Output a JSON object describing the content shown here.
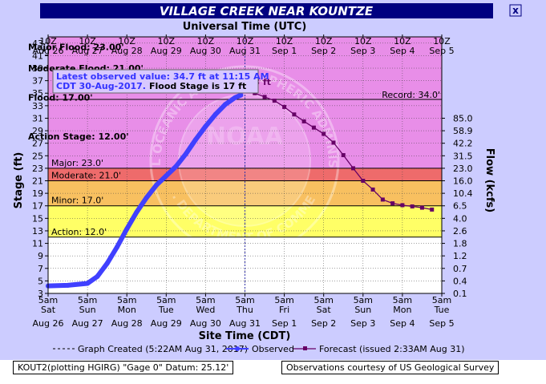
{
  "header": {
    "title": "VILLAGE CREEK NEAR KOUNTZE",
    "top_axis_title": "Universal Time (UTC)",
    "close_button": "x"
  },
  "chart_data": {
    "type": "line",
    "ylabel": "Stage (ft)",
    "y2label": "Flow (kcfs)",
    "xlabel": "Site Time (CDT)",
    "ylim": [
      3,
      44
    ],
    "xlim_hours": [
      0,
      240
    ],
    "yticks": [
      3,
      5,
      7,
      9,
      11,
      13,
      15,
      17,
      19,
      21,
      23,
      25,
      27,
      29,
      31,
      33,
      35,
      37,
      39,
      41,
      43
    ],
    "x_bottom_ticks": [
      {
        "t": "5am",
        "d": "Sat",
        "date": "Aug 26"
      },
      {
        "t": "5am",
        "d": "Sun",
        "date": "Aug 27"
      },
      {
        "t": "5am",
        "d": "Mon",
        "date": "Aug 28"
      },
      {
        "t": "5am",
        "d": "Tue",
        "date": "Aug 29"
      },
      {
        "t": "5am",
        "d": "Wed",
        "date": "Aug 30"
      },
      {
        "t": "5am",
        "d": "Thu",
        "date": "Aug 31"
      },
      {
        "t": "5am",
        "d": "Fri",
        "date": "Sep 1"
      },
      {
        "t": "5am",
        "d": "Sat",
        "date": "Sep 2"
      },
      {
        "t": "5am",
        "d": "Sun",
        "date": "Sep 3"
      },
      {
        "t": "5am",
        "d": "Mon",
        "date": "Sep 4"
      },
      {
        "t": "5am",
        "d": "Tue",
        "date": "Sep 5"
      }
    ],
    "x_top_ticks": [
      {
        "t": "10Z",
        "date": "Aug 26"
      },
      {
        "t": "10Z",
        "date": "Aug 27"
      },
      {
        "t": "10Z",
        "date": "Aug 28"
      },
      {
        "t": "10Z",
        "date": "Aug 29"
      },
      {
        "t": "10Z",
        "date": "Aug 30"
      },
      {
        "t": "10Z",
        "date": "Aug 31"
      },
      {
        "t": "10Z",
        "date": "Sep 1"
      },
      {
        "t": "10Z",
        "date": "Sep 2"
      },
      {
        "t": "10Z",
        "date": "Sep 3"
      },
      {
        "t": "10Z",
        "date": "Sep 4"
      },
      {
        "t": "10Z",
        "date": "Sep 5"
      }
    ],
    "flow_ticks": [
      {
        "stage": 3,
        "label": "0.1"
      },
      {
        "stage": 5,
        "label": "0.4"
      },
      {
        "stage": 7,
        "label": "0.7"
      },
      {
        "stage": 9,
        "label": "1.2"
      },
      {
        "stage": 11,
        "label": "1.8"
      },
      {
        "stage": 13,
        "label": "2.6"
      },
      {
        "stage": 15,
        "label": "4.0"
      },
      {
        "stage": 17,
        "label": "6.5"
      },
      {
        "stage": 19,
        "label": "10.4"
      },
      {
        "stage": 21,
        "label": "16.0"
      },
      {
        "stage": 23,
        "label": "23.0"
      },
      {
        "stage": 25,
        "label": "31.5"
      },
      {
        "stage": 27,
        "label": "42.2"
      },
      {
        "stage": 29,
        "label": "58.9"
      },
      {
        "stage": 31,
        "label": "85.0"
      }
    ],
    "flood_categories": [
      {
        "name": "Major",
        "label": "Major: 23.0'",
        "min": 23,
        "max": 44,
        "color": "#e88ee8"
      },
      {
        "name": "Moderate",
        "label": "Moderate: 21.0'",
        "min": 21,
        "max": 23,
        "color": "#ee6b6b"
      },
      {
        "name": "Minor",
        "label": "Minor: 17.0'",
        "min": 17,
        "max": 21,
        "color": "#f8c060"
      },
      {
        "name": "Action",
        "label": "Action: 12.0'",
        "min": 12,
        "max": 17,
        "color": "#ffff66"
      }
    ],
    "left_labels": [
      {
        "text": "Major Flood: 23.00'",
        "stage": 42.4
      },
      {
        "text": "Moderate Flood: 21.00'",
        "stage": 39.0
      },
      {
        "text": "Flood: 17.00'",
        "stage": 34.3
      },
      {
        "text": "Action Stage: 12.00'",
        "stage": 28.1
      }
    ],
    "record": {
      "label": "Record: 34.0'",
      "value": 34.0
    },
    "observed": {
      "name": "Observed",
      "color": "#4040ff",
      "x": [
        0,
        12,
        24,
        30,
        36,
        42,
        48,
        54,
        60,
        66,
        72,
        78,
        84,
        90,
        96,
        102,
        108,
        114,
        117.5
      ],
      "y": [
        4.2,
        4.3,
        4.6,
        5.7,
        7.8,
        10.4,
        13.3,
        16.0,
        18.3,
        20.3,
        21.8,
        23.3,
        25.3,
        27.6,
        29.7,
        31.6,
        33.2,
        34.3,
        34.7
      ]
    },
    "forecast": {
      "name": "Forecast",
      "color": "#660066",
      "x": [
        120,
        126,
        132,
        138,
        144,
        150,
        156,
        162,
        168,
        174,
        180,
        186,
        192,
        198,
        204,
        210,
        216,
        222,
        228,
        234
      ],
      "y": [
        35.3,
        35.0,
        34.4,
        33.8,
        32.8,
        31.6,
        30.5,
        29.5,
        28.5,
        27.1,
        25.1,
        23.0,
        21.0,
        19.6,
        18.0,
        17.4,
        17.1,
        16.9,
        16.7,
        16.4
      ]
    },
    "now_hour": 120,
    "annotations": {
      "observed_peak": "34.7 ft",
      "forecast_peak": "35.3 ft",
      "latest_line1": "Latest observed value: 34.7 ft at 11:15 AM",
      "latest_line2": "CDT 30-Aug-2017.",
      "latest_line2b": "Flood Stage is 17 ft"
    },
    "legend": {
      "graph_created": "Graph Created (5:22AM Aug 31, 2017)",
      "observed": "Observed",
      "forecast": "Forecast (issued 2:33AM Aug 31)"
    },
    "watermark": {
      "text_top": "NATIONAL OCEANIC AND ATMOSPHERIC ADMINISTRATION",
      "text_bottom": "U.S. DEPARTMENT OF COMMERCE",
      "center": "NOAA"
    }
  },
  "footer": {
    "station": "KOUT2(plotting HGIRG) \"Gage 0\" Datum: 25.12'",
    "courtesy": "Observations courtesy of US Geological Survey"
  },
  "colors": {
    "background": "#ccccff",
    "title_bar": "#000080",
    "grid": "#444444"
  }
}
